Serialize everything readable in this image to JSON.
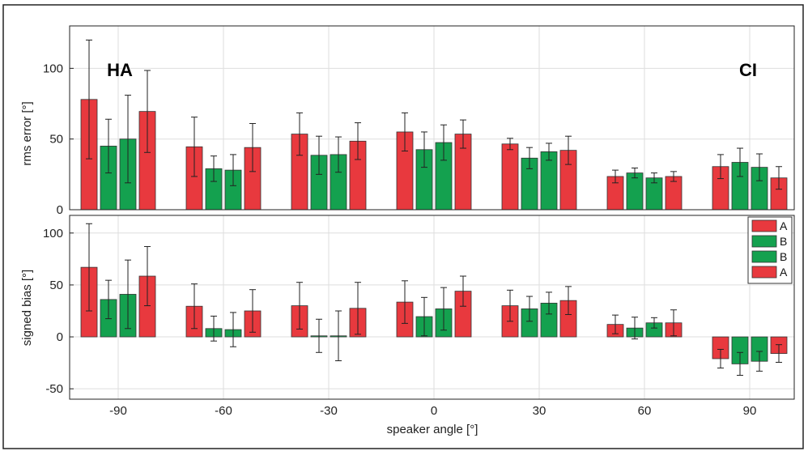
{
  "chart_data": {
    "type": "bar",
    "categories": [
      "-90",
      "-60",
      "-30",
      "0",
      "30",
      "60",
      "90"
    ],
    "series_order": [
      "A",
      "B",
      "B",
      "A"
    ],
    "series_colors": [
      "#e8393e",
      "#14a14f",
      "#14a14f",
      "#e8393e"
    ],
    "xlabel": "speaker angle [°]",
    "legend": {
      "placement": "right, lower panel",
      "entries": [
        {
          "label": "A",
          "color": "#e8393e"
        },
        {
          "label": "B",
          "color": "#14a14f"
        },
        {
          "label": "B",
          "color": "#14a14f"
        },
        {
          "label": "A",
          "color": "#e8393e"
        }
      ]
    },
    "grid": true,
    "panels": [
      {
        "id": "top",
        "ylabel": "rms error [°]",
        "ylim": [
          0,
          130
        ],
        "yticks": [
          0,
          50,
          100
        ],
        "annotations": [
          {
            "text": "HA",
            "placement": "top-left"
          },
          {
            "text": "CI",
            "placement": "top-right"
          }
        ],
        "values": [
          [
            78,
            45,
            50,
            69.5
          ],
          [
            44.5,
            29,
            28,
            44
          ],
          [
            53.5,
            38.5,
            39,
            48.5
          ],
          [
            55,
            42.5,
            47.5,
            53.5
          ],
          [
            46.5,
            36.5,
            41,
            42
          ],
          [
            23.5,
            26,
            22.5,
            23.5
          ],
          [
            30.5,
            33.5,
            30,
            22.5
          ]
        ],
        "errors": [
          [
            42,
            19,
            31,
            29
          ],
          [
            21,
            9,
            11,
            17
          ],
          [
            15,
            13.5,
            12.5,
            13
          ],
          [
            13.5,
            12.5,
            12.5,
            10
          ],
          [
            4,
            7.5,
            6,
            10
          ],
          [
            4.5,
            3.5,
            3.5,
            3.5
          ],
          [
            8.5,
            10,
            9.5,
            8
          ]
        ]
      },
      {
        "id": "bottom",
        "ylabel": "signed bias [°]",
        "ylim": [
          -60,
          117
        ],
        "yticks": [
          -50,
          0,
          50,
          100
        ],
        "values": [
          [
            67,
            36,
            41,
            58.5
          ],
          [
            29.5,
            8,
            7,
            25
          ],
          [
            30,
            1,
            1,
            27.5
          ],
          [
            33.5,
            19.5,
            27,
            44
          ],
          [
            30,
            27,
            32.5,
            35
          ],
          [
            12,
            8.5,
            13.5,
            13.5
          ],
          [
            -21,
            -26,
            -23.5,
            -16
          ]
        ],
        "errors": [
          [
            42,
            18.5,
            33,
            28.5
          ],
          [
            21.5,
            12,
            16.5,
            20.5
          ],
          [
            22.5,
            16,
            24,
            25
          ],
          [
            20.5,
            18.5,
            20.5,
            14.5
          ],
          [
            15,
            12,
            10.5,
            13.5
          ],
          [
            9,
            10.5,
            5,
            12.5
          ],
          [
            9,
            11,
            9.5,
            8.5
          ]
        ]
      }
    ]
  }
}
